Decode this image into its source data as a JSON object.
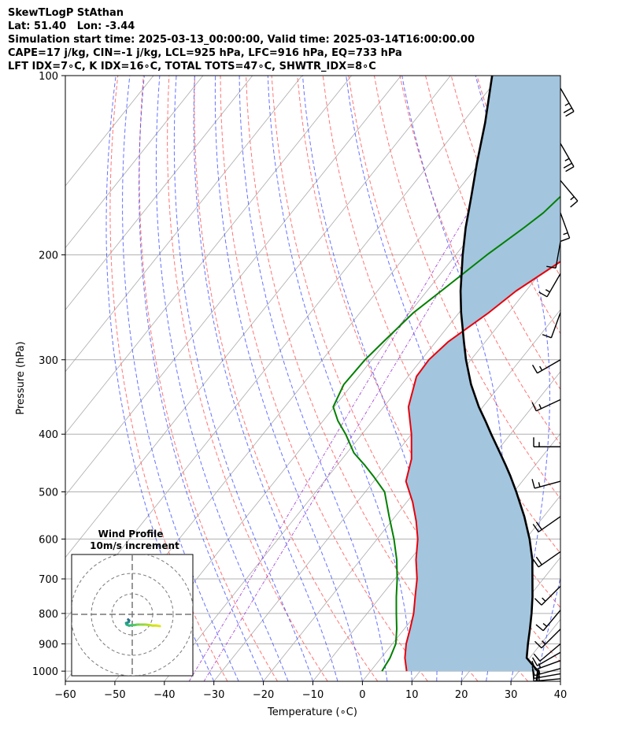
{
  "header": {
    "line1": "SkewTLogP StAthan",
    "line2": "Lat: 51.40   Lon: -3.44",
    "line3": "Simulation start time: 2025-03-13_00:00:00, Valid time: 2025-03-14T16:00:00.00",
    "line4": "CAPE=17 j/kg, CIN=-1 j/kg, LCL=925 hPa, LFC=916 hPa, EQ=733 hPa",
    "line5": "LFT IDX=7∘C, K IDX=16∘C, TOTAL TOTS=47∘C, SHWTR_IDX=8∘C"
  },
  "chart_data": {
    "type": "skew-t log-p",
    "xlabel": "Temperature (∘C)",
    "ylabel": "Pressure (hPa)",
    "xlim": [
      -60,
      40
    ],
    "ylim": [
      1040,
      100
    ],
    "y_scale": "log",
    "x_ticks": [
      "−60",
      "−50",
      "−40",
      "−30",
      "−20",
      "−10",
      "0",
      "10",
      "20",
      "30",
      "40"
    ],
    "y_ticks": [
      "100",
      "200",
      "300",
      "400",
      "500",
      "600",
      "700",
      "800",
      "900",
      "1000"
    ],
    "grid": true,
    "series": [
      {
        "role": "temperature",
        "color": "#e8000b",
        "points": [
          [
            -14.6,
            100
          ],
          [
            -15.3,
            120
          ],
          [
            -16.4,
            140
          ],
          [
            -19.7,
            160
          ],
          [
            -23,
            180
          ],
          [
            -26.8,
            200
          ],
          [
            -32,
            230
          ],
          [
            -34,
            250
          ],
          [
            -37.5,
            280
          ],
          [
            -38.5,
            300
          ],
          [
            -38.3,
            320
          ],
          [
            -35,
            360
          ],
          [
            -30,
            400
          ],
          [
            -26,
            440
          ],
          [
            -23.5,
            480
          ],
          [
            -18.8,
            520
          ],
          [
            -15,
            560
          ],
          [
            -11.8,
            600
          ],
          [
            -8.8,
            650
          ],
          [
            -5.5,
            700
          ],
          [
            -3,
            750
          ],
          [
            -0.6,
            800
          ],
          [
            1.2,
            850
          ],
          [
            2.8,
            900
          ],
          [
            4.8,
            950
          ],
          [
            7.3,
            1000
          ]
        ]
      },
      {
        "role": "dewpoint",
        "color": "#008000",
        "points": [
          [
            -21.3,
            100
          ],
          [
            -27.4,
            120
          ],
          [
            -32.9,
            140
          ],
          [
            -38.3,
            160
          ],
          [
            -39.1,
            170
          ],
          [
            -40.6,
            180
          ],
          [
            -43.7,
            200
          ],
          [
            -47.1,
            230
          ],
          [
            -49.2,
            250
          ],
          [
            -50.6,
            280
          ],
          [
            -51.4,
            300
          ],
          [
            -51.7,
            330
          ],
          [
            -50.2,
            360
          ],
          [
            -47,
            380
          ],
          [
            -43.3,
            400
          ],
          [
            -38.6,
            430
          ],
          [
            -34.6,
            450
          ],
          [
            -31,
            470
          ],
          [
            -26.1,
            500
          ],
          [
            -21.2,
            550
          ],
          [
            -16.6,
            600
          ],
          [
            -12.7,
            650
          ],
          [
            -9.5,
            700
          ],
          [
            -6.8,
            750
          ],
          [
            -4.1,
            800
          ],
          [
            -1.5,
            850
          ],
          [
            0.7,
            900
          ],
          [
            1.8,
            950
          ],
          [
            2.3,
            1000
          ]
        ]
      },
      {
        "role": "parcel",
        "color": "#000000",
        "points": [
          [
            -71.6,
            100
          ],
          [
            -65.4,
            120
          ],
          [
            -60.6,
            140
          ],
          [
            -56.2,
            160
          ],
          [
            -52.4,
            180
          ],
          [
            -48.6,
            200
          ],
          [
            -43.2,
            230
          ],
          [
            -39.6,
            250
          ],
          [
            -34.3,
            280
          ],
          [
            -31,
            300
          ],
          [
            -26,
            330
          ],
          [
            -20.8,
            360
          ],
          [
            -17.2,
            380
          ],
          [
            -13.9,
            400
          ],
          [
            -9.1,
            430
          ],
          [
            -6.1,
            450
          ],
          [
            -3.3,
            470
          ],
          [
            0.5,
            500
          ],
          [
            6.1,
            550
          ],
          [
            10.8,
            600
          ],
          [
            14.7,
            650
          ],
          [
            17.8,
            700
          ],
          [
            20.7,
            750
          ],
          [
            23.2,
            800
          ],
          [
            25.4,
            850
          ],
          [
            27.4,
            900
          ],
          [
            29.4,
            950
          ],
          [
            33.8,
            1000
          ],
          [
            35.2,
            1040
          ]
        ]
      }
    ],
    "cape_fill_color": "#a3c5de",
    "dry_adiabat_color": "#ff6666",
    "moist_adiabat_color": "#3344ff",
    "mixing_ratio_color": "#9933cc",
    "isotherm_color": "#aaaaaa",
    "wind_barbs": [
      {
        "p": 105,
        "speed_kt": 25,
        "dir_deg": 150
      },
      {
        "p": 130,
        "speed_kt": 25,
        "dir_deg": 150
      },
      {
        "p": 150,
        "speed_kt": 15,
        "dir_deg": 140
      },
      {
        "p": 170,
        "speed_kt": 15,
        "dir_deg": 160
      },
      {
        "p": 190,
        "speed_kt": 10,
        "dir_deg": 190
      },
      {
        "p": 215,
        "speed_kt": 15,
        "dir_deg": 210
      },
      {
        "p": 250,
        "speed_kt": 10,
        "dir_deg": 200
      },
      {
        "p": 300,
        "speed_kt": 15,
        "dir_deg": 240
      },
      {
        "p": 350,
        "speed_kt": 15,
        "dir_deg": 245
      },
      {
        "p": 420,
        "speed_kt": 15,
        "dir_deg": 270
      },
      {
        "p": 480,
        "speed_kt": 15,
        "dir_deg": 255
      },
      {
        "p": 550,
        "speed_kt": 20,
        "dir_deg": 235
      },
      {
        "p": 630,
        "speed_kt": 20,
        "dir_deg": 235
      },
      {
        "p": 720,
        "speed_kt": 15,
        "dir_deg": 225
      },
      {
        "p": 790,
        "speed_kt": 15,
        "dir_deg": 220
      },
      {
        "p": 850,
        "speed_kt": 15,
        "dir_deg": 225
      },
      {
        "p": 900,
        "speed_kt": 10,
        "dir_deg": 230
      },
      {
        "p": 930,
        "speed_kt": 10,
        "dir_deg": 240
      },
      {
        "p": 960,
        "speed_kt": 15,
        "dir_deg": 250
      },
      {
        "p": 990,
        "speed_kt": 15,
        "dir_deg": 255
      },
      {
        "p": 1010,
        "speed_kt": 15,
        "dir_deg": 260
      },
      {
        "p": 1030,
        "speed_kt": 15,
        "dir_deg": 265
      }
    ],
    "inset": {
      "title": "Wind Profile",
      "subtitle": "10m/s increment",
      "hodograph_points": [
        [
          -4,
          -5
        ],
        [
          -3,
          -6
        ],
        [
          -3.5,
          -7.5
        ],
        [
          -4.5,
          -8
        ],
        [
          -6,
          -8.5
        ],
        [
          -5.5,
          -10
        ],
        [
          -3,
          -11
        ],
        [
          0,
          -10.5
        ],
        [
          2,
          -10.5
        ],
        [
          5,
          -10
        ],
        [
          8,
          -10
        ],
        [
          13,
          -10
        ],
        [
          17,
          -10.5
        ],
        [
          20,
          -11
        ],
        [
          24,
          -11
        ],
        [
          27,
          -11.5
        ]
      ],
      "ring_spacing_ms": 10
    }
  }
}
